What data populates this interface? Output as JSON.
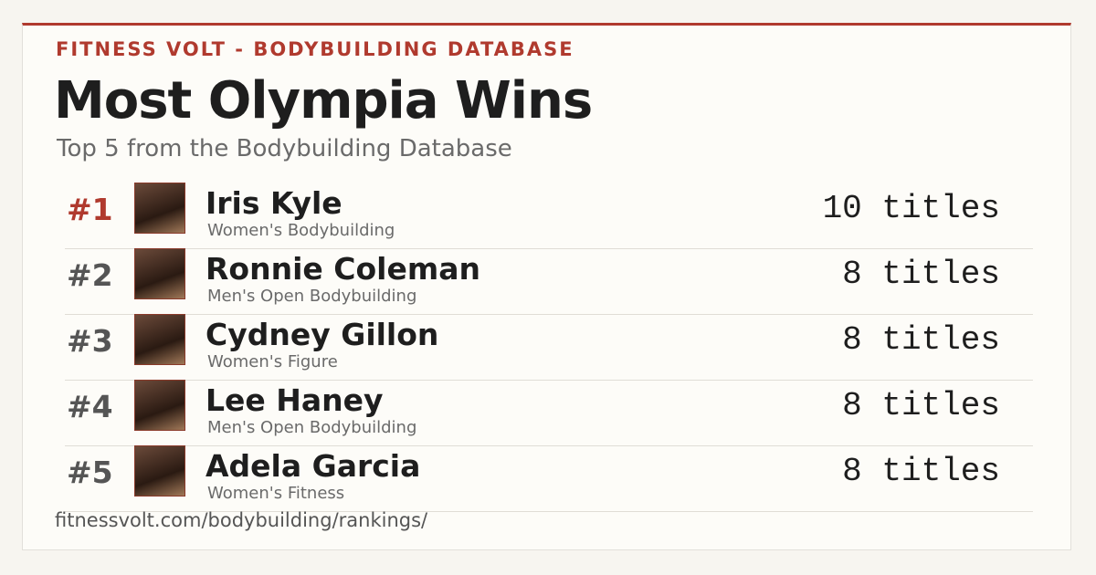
{
  "header": {
    "eyebrow": "FITNESS VOLT - BODYBUILDING DATABASE",
    "title": "Most Olympia Wins",
    "subtitle": "Top 5 from the Bodybuilding Database"
  },
  "entries": [
    {
      "rank": "#1",
      "name": "Iris Kyle",
      "division": "Women's Bodybuilding",
      "wins": "10 titles"
    },
    {
      "rank": "#2",
      "name": "Ronnie Coleman",
      "division": "Men's Open Bodybuilding",
      "wins": "8 titles"
    },
    {
      "rank": "#3",
      "name": "Cydney Gillon",
      "division": "Women's Figure",
      "wins": "8 titles"
    },
    {
      "rank": "#4",
      "name": "Lee Haney",
      "division": "Men's Open Bodybuilding",
      "wins": "8 titles"
    },
    {
      "rank": "#5",
      "name": "Adela Garcia",
      "division": "Women's Fitness",
      "wins": "8 titles"
    }
  ],
  "footer": {
    "url": "fitnessvolt.com/bodybuilding/rankings/"
  }
}
